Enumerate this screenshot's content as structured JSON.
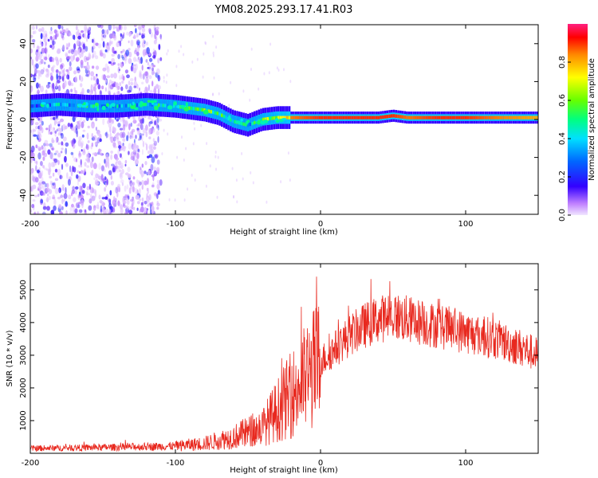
{
  "title": "YM08.2025.293.17.41.R03",
  "chart_data": [
    {
      "type": "heatmap",
      "name": "spectrogram",
      "xlabel": "Height of straight line (km)",
      "ylabel": "Frequency (Hz)",
      "xlim": [
        -200,
        150
      ],
      "ylim": [
        -50,
        50
      ],
      "xticks": [
        -200,
        -100,
        0,
        100
      ],
      "yticks": [
        -40,
        -20,
        0,
        20,
        40
      ],
      "colorbar": {
        "label": "Normalized spectral amplitude",
        "range": [
          0,
          1
        ],
        "ticks": [
          0.0,
          0.2,
          0.4,
          0.6,
          0.8
        ]
      },
      "ridge": {
        "height_km": [
          -200,
          -180,
          -160,
          -140,
          -120,
          -100,
          -90,
          -80,
          -70,
          -60,
          -50,
          -40,
          -30,
          -20,
          0,
          20,
          40,
          50,
          60,
          80,
          100,
          120,
          150
        ],
        "frequency_hz": [
          7,
          8,
          7,
          7,
          8,
          7,
          6,
          5,
          3,
          -1,
          -3,
          0,
          1,
          1,
          1,
          1,
          1,
          2,
          1,
          1,
          1,
          1,
          1
        ],
        "amplitude": [
          0.3,
          0.35,
          0.4,
          0.35,
          0.4,
          0.45,
          0.5,
          0.55,
          0.5,
          0.45,
          0.4,
          0.55,
          0.7,
          0.85,
          0.9,
          0.9,
          0.9,
          0.9,
          0.85,
          0.9,
          0.9,
          0.85,
          0.8
        ]
      },
      "noise_region_km": [
        -200,
        -110
      ]
    },
    {
      "type": "line",
      "name": "snr",
      "xlabel": "Height of straight line (km)",
      "ylabel": "SNR (10 * v/v)",
      "xlim": [
        -200,
        150
      ],
      "ylim": [
        0,
        5800
      ],
      "xticks": [
        -200,
        -100,
        0,
        100
      ],
      "yticks": [
        1000,
        2000,
        3000,
        4000,
        5000
      ],
      "color": "#e8281e",
      "trend": {
        "height_km": [
          -200,
          -150,
          -100,
          -80,
          -60,
          -40,
          -30,
          -20,
          -10,
          0,
          10,
          20,
          30,
          40,
          50,
          60,
          80,
          100,
          120,
          140,
          150
        ],
        "snr": [
          150,
          180,
          220,
          300,
          500,
          800,
          1300,
          1800,
          2300,
          2800,
          3200,
          3600,
          3900,
          4100,
          4200,
          4100,
          3900,
          3700,
          3500,
          3200,
          3000
        ]
      }
    }
  ]
}
